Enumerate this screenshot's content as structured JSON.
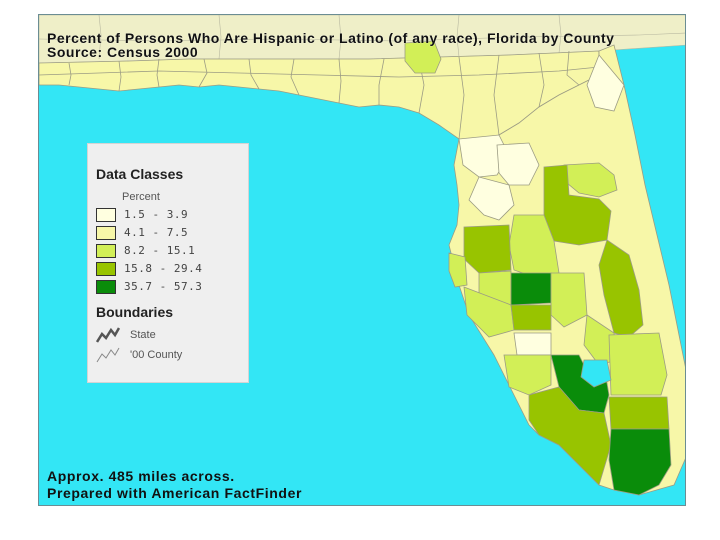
{
  "map": {
    "title": "Percent of Persons Who Are Hispanic or Latino (of any race), Florida by County",
    "source": "Source: Census 2000",
    "scale_note": "Approx. 485 miles across.",
    "prepared_by": "Prepared with American FactFinder",
    "colors": {
      "water": "#33e6f5",
      "class_1": "#ffffe0",
      "class_2": "#f7f7a8",
      "class_3": "#d2ef57",
      "class_4": "#98c400",
      "class_5": "#0a8c0a",
      "neighbor_states": "#efefc8"
    }
  },
  "legend": {
    "title": "Data Classes",
    "unit": "Percent",
    "classes": [
      {
        "label": "1.5 - 3.9",
        "color": "#ffffe0"
      },
      {
        "label": "4.1 - 7.5",
        "color": "#f7f7a8"
      },
      {
        "label": "8.2 - 15.1",
        "color": "#d2ef57"
      },
      {
        "label": "15.8 - 29.4",
        "color": "#98c400"
      },
      {
        "label": "35.7 - 57.3",
        "color": "#0a8c0a"
      }
    ],
    "boundaries_title": "Boundaries",
    "boundaries": [
      {
        "label": "State",
        "icon": "state-boundary-icon"
      },
      {
        "label": "'00 County",
        "icon": "county-boundary-icon"
      }
    ]
  }
}
